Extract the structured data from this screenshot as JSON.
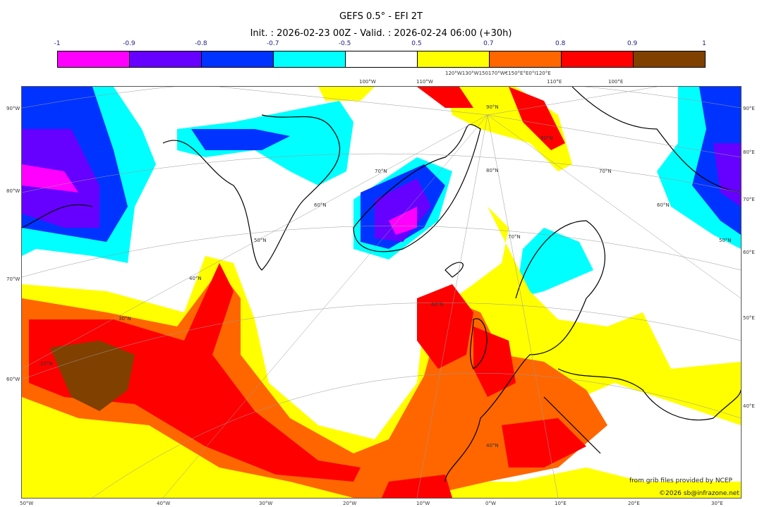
{
  "title": "GEFS 0.5° - EFI 2T",
  "subtitle": "Init. : 2026-02-23 00Z - Valid. : 2026-02-24 06:00 (+30h)",
  "colorbar": {
    "ticks": [
      "-1",
      "-0.9",
      "-0.8",
      "-0.7",
      "-0.5",
      "0.5",
      "0.7",
      "0.8",
      "0.9",
      "1"
    ],
    "colors": [
      "#ff00ff",
      "#6600ff",
      "#0033ff",
      "#00ffff",
      "#ffffff",
      "#ffff00",
      "#ff6600",
      "#ff0000",
      "#804000"
    ]
  },
  "axes": {
    "top": [
      "100°W",
      "110°W",
      "120°W130°W150170°W€150°E°E0°I120°E",
      "110°E",
      "100°E"
    ],
    "left": [
      "90°W",
      "80°W",
      "70°W",
      "60°W"
    ],
    "right": [
      "90°E",
      "80°E",
      "70°E",
      "60°E",
      "50°E",
      "40°E"
    ],
    "bottom": [
      "50°W",
      "40°W",
      "30°W",
      "20°W",
      "10°W",
      "0°W",
      "10°E",
      "20°E",
      "30°E"
    ],
    "lat": [
      "90°N",
      "80°N",
      "80°N",
      "70°N",
      "70°N",
      "70°N",
      "60°N",
      "60°N",
      "60°N",
      "50°N",
      "50°N",
      "40°N",
      "40°N",
      "30°N",
      "20°N"
    ]
  },
  "footer": {
    "credit": "from grib files provided by NCEP",
    "copyright": "©2026 sb@infrazone.net"
  }
}
